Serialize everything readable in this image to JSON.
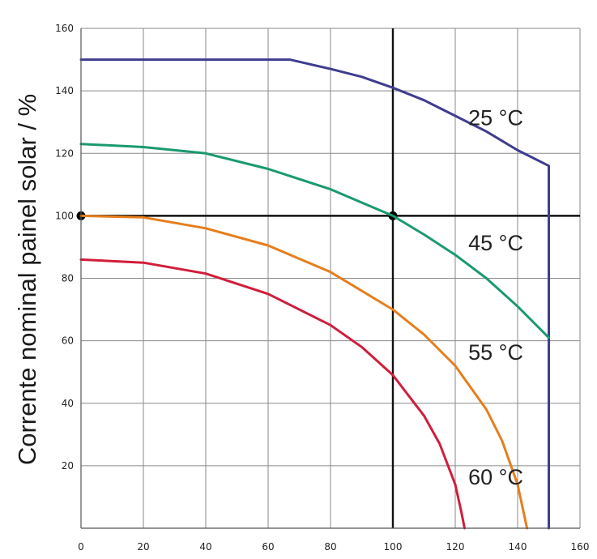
{
  "chart_data": {
    "type": "line",
    "title": "",
    "xlabel": "",
    "ylabel": "Corrente nominal painel solar / %",
    "xlim": [
      0,
      160
    ],
    "ylim": [
      0,
      160
    ],
    "xticks": [
      0,
      20,
      40,
      60,
      80,
      100,
      120,
      140,
      160
    ],
    "yticks": [
      20,
      40,
      60,
      80,
      100,
      120,
      140,
      160
    ],
    "grid": true,
    "reference_lines": {
      "x": 100,
      "y": 100
    },
    "reference_points": [
      {
        "x": 0,
        "y": 100
      },
      {
        "x": 100,
        "y": 100
      }
    ],
    "series": [
      {
        "name": "25 °C",
        "color": "#3f3d8f",
        "points": [
          [
            0,
            150
          ],
          [
            67,
            150
          ],
          [
            80,
            147
          ],
          [
            90,
            144.5
          ],
          [
            100,
            141
          ],
          [
            110,
            137
          ],
          [
            120,
            132
          ],
          [
            130,
            127
          ],
          [
            140,
            121
          ],
          [
            150,
            116
          ],
          [
            150,
            0
          ]
        ]
      },
      {
        "name": "45 °C",
        "color": "#1a9a6e",
        "points": [
          [
            0,
            123
          ],
          [
            20,
            122
          ],
          [
            40,
            120
          ],
          [
            60,
            115
          ],
          [
            80,
            108.5
          ],
          [
            100,
            100
          ],
          [
            110,
            94
          ],
          [
            120,
            87.5
          ],
          [
            130,
            80
          ],
          [
            140,
            71
          ],
          [
            150,
            61
          ]
        ]
      },
      {
        "name": "55 °C",
        "color": "#e67e1c",
        "points": [
          [
            0,
            100
          ],
          [
            20,
            99.5
          ],
          [
            40,
            96
          ],
          [
            60,
            90.5
          ],
          [
            80,
            82
          ],
          [
            100,
            70
          ],
          [
            110,
            62
          ],
          [
            120,
            52
          ],
          [
            130,
            38
          ],
          [
            135,
            28
          ],
          [
            140,
            14
          ],
          [
            143,
            0
          ]
        ]
      },
      {
        "name": "60 °C",
        "color": "#d11d3b",
        "points": [
          [
            0,
            86
          ],
          [
            20,
            85
          ],
          [
            40,
            81.5
          ],
          [
            60,
            75
          ],
          [
            80,
            65
          ],
          [
            90,
            58
          ],
          [
            100,
            49
          ],
          [
            110,
            36
          ],
          [
            115,
            27
          ],
          [
            120,
            14
          ],
          [
            122,
            5
          ],
          [
            123,
            0
          ]
        ]
      }
    ]
  }
}
